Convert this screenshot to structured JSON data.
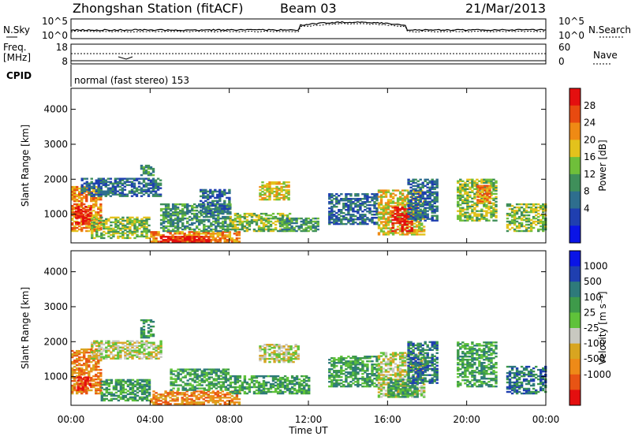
{
  "header": {
    "station": "Zhongshan Station (fitACF)",
    "beam": "Beam 03",
    "date": "21/Mar/2013"
  },
  "noise_panel": {
    "left_label": "N.Sky",
    "right_label": "N.Search",
    "left_ticks": [
      "10^5",
      "10^0"
    ],
    "right_ticks": [
      "10^5",
      "10^0"
    ]
  },
  "freq_panel": {
    "left_label_1": "Freq.",
    "left_label_2": "[MHz]",
    "right_label": "Nave",
    "left_ticks": [
      "18",
      "8"
    ],
    "right_ticks": [
      "60",
      "0"
    ],
    "cpid_label": "CPID",
    "cpid_text": "normal (fast stereo) 153"
  },
  "colors": {
    "power_scale": [
      "#0a14e6",
      "#1f3fb0",
      "#2e6e8e",
      "#3f8f5a",
      "#6fbf3a",
      "#e3c21c",
      "#ef8a14",
      "#e84a10",
      "#e40f0f"
    ],
    "velocity_scale": [
      "#0a14e6",
      "#1f3fb0",
      "#2e7a7a",
      "#3e9a4a",
      "#5fc23a",
      "#c8c8c0",
      "#d8a520",
      "#ee8a18",
      "#e85414",
      "#e40f0f"
    ]
  },
  "chart_data": [
    {
      "type": "heatmap",
      "name": "power",
      "ylabel": "Slant Range [km]",
      "ylim": [
        180,
        4600
      ],
      "y_ticks": [
        1000,
        2000,
        3000,
        4000
      ],
      "colorbar": {
        "label": "Power [dB]",
        "ticks": [
          "28",
          "24",
          "20",
          "16",
          "12",
          "8",
          "4"
        ]
      },
      "regions": [
        {
          "t": [
            0.0,
            1.5
          ],
          "r": [
            500,
            1800
          ],
          "level": 6
        },
        {
          "t": [
            0.2,
            1.0
          ],
          "r": [
            700,
            1200
          ],
          "level": 8
        },
        {
          "t": [
            0.5,
            4.5
          ],
          "r": [
            1500,
            2000
          ],
          "level": 2
        },
        {
          "t": [
            1.0,
            4.0
          ],
          "r": [
            300,
            900
          ],
          "level": 4
        },
        {
          "t": [
            3.5,
            4.2
          ],
          "r": [
            2100,
            2400
          ],
          "level": 3
        },
        {
          "t": [
            4.0,
            8.5
          ],
          "r": [
            200,
            500
          ],
          "level": 6
        },
        {
          "t": [
            4.5,
            7.0
          ],
          "r": [
            200,
            380
          ],
          "level": 8
        },
        {
          "t": [
            4.5,
            8.0
          ],
          "r": [
            500,
            1300
          ],
          "level": 3
        },
        {
          "t": [
            6.5,
            8.0
          ],
          "r": [
            1000,
            1700
          ],
          "level": 2
        },
        {
          "t": [
            8.0,
            11.0
          ],
          "r": [
            500,
            1000
          ],
          "level": 4
        },
        {
          "t": [
            9.5,
            11.0
          ],
          "r": [
            1400,
            1900
          ],
          "level": 5
        },
        {
          "t": [
            10.5,
            12.5
          ],
          "r": [
            500,
            900
          ],
          "level": 3
        },
        {
          "t": [
            13.0,
            15.5
          ],
          "r": [
            700,
            1600
          ],
          "level": 2
        },
        {
          "t": [
            15.5,
            17.8
          ],
          "r": [
            400,
            1700
          ],
          "level": 5
        },
        {
          "t": [
            16.2,
            17.2
          ],
          "r": [
            500,
            1200
          ],
          "level": 8
        },
        {
          "t": [
            17.0,
            18.5
          ],
          "r": [
            800,
            2000
          ],
          "level": 2
        },
        {
          "t": [
            19.5,
            21.5
          ],
          "r": [
            800,
            2000
          ],
          "level": 4
        },
        {
          "t": [
            20.5,
            21.2
          ],
          "r": [
            1300,
            1800
          ],
          "level": 6
        },
        {
          "t": [
            22.0,
            24.0
          ],
          "r": [
            500,
            1300
          ],
          "level": 4
        }
      ]
    },
    {
      "type": "heatmap",
      "name": "velocity",
      "ylabel": "Slant Range [km]",
      "ylim": [
        180,
        4600
      ],
      "y_ticks": [
        1000,
        2000,
        3000,
        4000
      ],
      "colorbar": {
        "label": "Velocity [m s⁻¹]",
        "ticks": [
          "1000",
          "500",
          "100",
          "25",
          "-25",
          "-100",
          "-500",
          "-1000"
        ]
      },
      "regions": [
        {
          "t": [
            0.0,
            1.5
          ],
          "r": [
            500,
            1800
          ],
          "level": 7
        },
        {
          "t": [
            0.3,
            1.0
          ],
          "r": [
            600,
            1000
          ],
          "level": 9
        },
        {
          "t": [
            1.0,
            4.5
          ],
          "r": [
            1500,
            2000
          ],
          "level": 5
        },
        {
          "t": [
            1.5,
            4.0
          ],
          "r": [
            300,
            900
          ],
          "level": 3
        },
        {
          "t": [
            3.5,
            4.2
          ],
          "r": [
            2100,
            2600
          ],
          "level": 3
        },
        {
          "t": [
            4.0,
            8.5
          ],
          "r": [
            200,
            600
          ],
          "level": 7
        },
        {
          "t": [
            5.0,
            8.0
          ],
          "r": [
            600,
            1200
          ],
          "level": 3
        },
        {
          "t": [
            9.5,
            11.5
          ],
          "r": [
            1400,
            1900
          ],
          "level": 5
        },
        {
          "t": [
            8.0,
            12.0
          ],
          "r": [
            500,
            1000
          ],
          "level": 3
        },
        {
          "t": [
            13.0,
            15.5
          ],
          "r": [
            700,
            1600
          ],
          "level": 3
        },
        {
          "t": [
            15.5,
            17.8
          ],
          "r": [
            400,
            1700
          ],
          "level": 5
        },
        {
          "t": [
            16.0,
            17.5
          ],
          "r": [
            400,
            900
          ],
          "level": 3
        },
        {
          "t": [
            17.0,
            18.5
          ],
          "r": [
            800,
            2000
          ],
          "level": 2
        },
        {
          "t": [
            19.5,
            21.5
          ],
          "r": [
            700,
            2000
          ],
          "level": 3
        },
        {
          "t": [
            22.0,
            24.0
          ],
          "r": [
            500,
            1300
          ],
          "level": 2
        }
      ]
    }
  ],
  "time_axis": {
    "label": "Time UT",
    "ticks": [
      "00:00",
      "04:00",
      "08:00",
      "12:00",
      "16:00",
      "20:00",
      "00:00"
    ]
  }
}
